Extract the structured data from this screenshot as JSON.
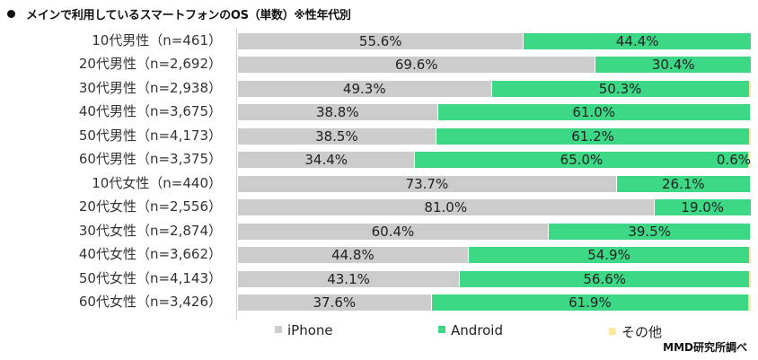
{
  "header": {
    "title": "メインで利用しているスマートフォンのOS（単数）※性年代別"
  },
  "legend": {
    "iphone": "iPhone",
    "android": "Android",
    "other": "その他"
  },
  "colors": {
    "iphone": "#cccccc",
    "android": "#3dd886",
    "other": "#fbe9a0"
  },
  "credit": "MMD研究所調べ",
  "rows": [
    {
      "label": "10代男性（n=461）",
      "iphone": 55.6,
      "android": 44.4,
      "other": 0.0,
      "iphone_label": "55.6%",
      "android_label": "44.4%",
      "other_label": ""
    },
    {
      "label": "20代男性（n=2,692）",
      "iphone": 69.6,
      "android": 30.4,
      "other": 0.0,
      "iphone_label": "69.6%",
      "android_label": "30.4%",
      "other_label": ""
    },
    {
      "label": "30代男性（n=2,938）",
      "iphone": 49.3,
      "android": 50.3,
      "other": 0.4,
      "iphone_label": "49.3%",
      "android_label": "50.3%",
      "other_label": ""
    },
    {
      "label": "40代男性（n=3,675）",
      "iphone": 38.8,
      "android": 61.0,
      "other": 0.2,
      "iphone_label": "38.8%",
      "android_label": "61.0%",
      "other_label": ""
    },
    {
      "label": "50代男性（n=4,173）",
      "iphone": 38.5,
      "android": 61.2,
      "other": 0.3,
      "iphone_label": "38.5%",
      "android_label": "61.2%",
      "other_label": ""
    },
    {
      "label": "60代男性（n=3,375）",
      "iphone": 34.4,
      "android": 65.0,
      "other": 0.6,
      "iphone_label": "34.4%",
      "android_label": "65.0%",
      "other_label": "0.6%"
    },
    {
      "label": "10代女性（n=440）",
      "iphone": 73.7,
      "android": 26.1,
      "other": 0.2,
      "iphone_label": "73.7%",
      "android_label": "26.1%",
      "other_label": ""
    },
    {
      "label": "20代女性（n=2,556）",
      "iphone": 81.0,
      "android": 19.0,
      "other": 0.0,
      "iphone_label": "81.0%",
      "android_label": "19.0%",
      "other_label": ""
    },
    {
      "label": "30代女性（n=2,874）",
      "iphone": 60.4,
      "android": 39.5,
      "other": 0.1,
      "iphone_label": "60.4%",
      "android_label": "39.5%",
      "other_label": ""
    },
    {
      "label": "40代女性（n=3,662）",
      "iphone": 44.8,
      "android": 54.9,
      "other": 0.3,
      "iphone_label": "44.8%",
      "android_label": "54.9%",
      "other_label": ""
    },
    {
      "label": "50代女性（n=4,143）",
      "iphone": 43.1,
      "android": 56.6,
      "other": 0.3,
      "iphone_label": "43.1%",
      "android_label": "56.6%",
      "other_label": ""
    },
    {
      "label": "60代女性（n=3,426）",
      "iphone": 37.6,
      "android": 61.9,
      "other": 0.5,
      "iphone_label": "37.6%",
      "android_label": "61.9%",
      "other_label": ""
    }
  ],
  "chart_data": {
    "type": "bar",
    "orientation": "horizontal",
    "stacked": "100%",
    "title": "メインで利用しているスマートフォンのOS（単数）※性年代別",
    "categories": [
      "10代男性（n=461）",
      "20代男性（n=2,692）",
      "30代男性（n=2,938）",
      "40代男性（n=3,675）",
      "50代男性（n=4,173）",
      "60代男性（n=3,375）",
      "10代女性（n=440）",
      "20代女性（n=2,556）",
      "30代女性（n=2,874）",
      "40代女性（n=3,662）",
      "50代女性（n=4,143）",
      "60代女性（n=3,426）"
    ],
    "series": [
      {
        "name": "iPhone",
        "color": "#cccccc",
        "values": [
          55.6,
          69.6,
          49.3,
          38.8,
          38.5,
          34.4,
          73.7,
          81.0,
          60.4,
          44.8,
          43.1,
          37.6
        ]
      },
      {
        "name": "Android",
        "color": "#3dd886",
        "values": [
          44.4,
          30.4,
          50.3,
          61.0,
          61.2,
          65.0,
          26.1,
          19.0,
          39.5,
          54.9,
          56.6,
          61.9
        ]
      },
      {
        "name": "その他",
        "color": "#fbe9a0",
        "values": [
          0.0,
          0.0,
          0.4,
          0.2,
          0.3,
          0.6,
          0.2,
          0.0,
          0.1,
          0.3,
          0.3,
          0.5
        ]
      }
    ],
    "annotations": [
      "0.6% (60代男性 その他)"
    ],
    "xlabel": "",
    "ylabel": "",
    "xlim": [
      0,
      100
    ],
    "grid": false,
    "legend_position": "bottom",
    "source": "MMD研究所調べ"
  }
}
